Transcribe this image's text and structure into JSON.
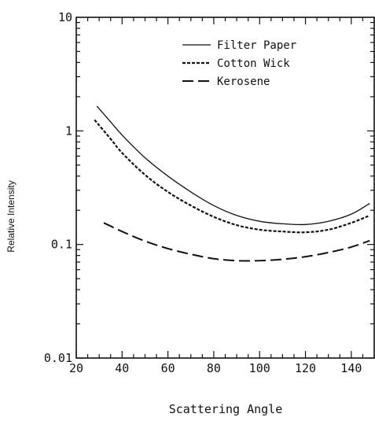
{
  "chart_data": {
    "type": "line",
    "xlabel": "Scattering Angle",
    "ylabel": "Relative Intensity",
    "xlim": [
      20,
      150
    ],
    "ylim": [
      0.01,
      10
    ],
    "yscale": "log",
    "x_ticks": [
      20,
      40,
      60,
      80,
      100,
      120,
      140
    ],
    "y_ticks": [
      {
        "value": 0.01,
        "label": "0.01"
      },
      {
        "value": 0.1,
        "label": "0.1"
      },
      {
        "value": 1,
        "label": "1"
      },
      {
        "value": 10,
        "label": "10"
      }
    ],
    "legend_position": "top-center",
    "series": [
      {
        "name": "Filter Paper",
        "style": "solid",
        "x": [
          29,
          35,
          40,
          50,
          60,
          70,
          80,
          90,
          100,
          110,
          120,
          130,
          140,
          148
        ],
        "y": [
          1.65,
          1.2,
          0.92,
          0.58,
          0.4,
          0.29,
          0.22,
          0.18,
          0.16,
          0.152,
          0.15,
          0.16,
          0.185,
          0.23
        ]
      },
      {
        "name": "Cotton Wick",
        "style": "dotted",
        "x": [
          28,
          35,
          40,
          50,
          60,
          70,
          80,
          90,
          100,
          110,
          120,
          130,
          140,
          148
        ],
        "y": [
          1.25,
          0.85,
          0.64,
          0.41,
          0.29,
          0.22,
          0.175,
          0.148,
          0.135,
          0.13,
          0.128,
          0.135,
          0.155,
          0.18
        ]
      },
      {
        "name": "Kerosene",
        "style": "dashed",
        "x": [
          32,
          40,
          50,
          60,
          70,
          80,
          90,
          100,
          110,
          120,
          130,
          140,
          148
        ],
        "y": [
          0.155,
          0.13,
          0.107,
          0.092,
          0.082,
          0.075,
          0.072,
          0.072,
          0.074,
          0.078,
          0.085,
          0.095,
          0.108
        ]
      }
    ]
  }
}
